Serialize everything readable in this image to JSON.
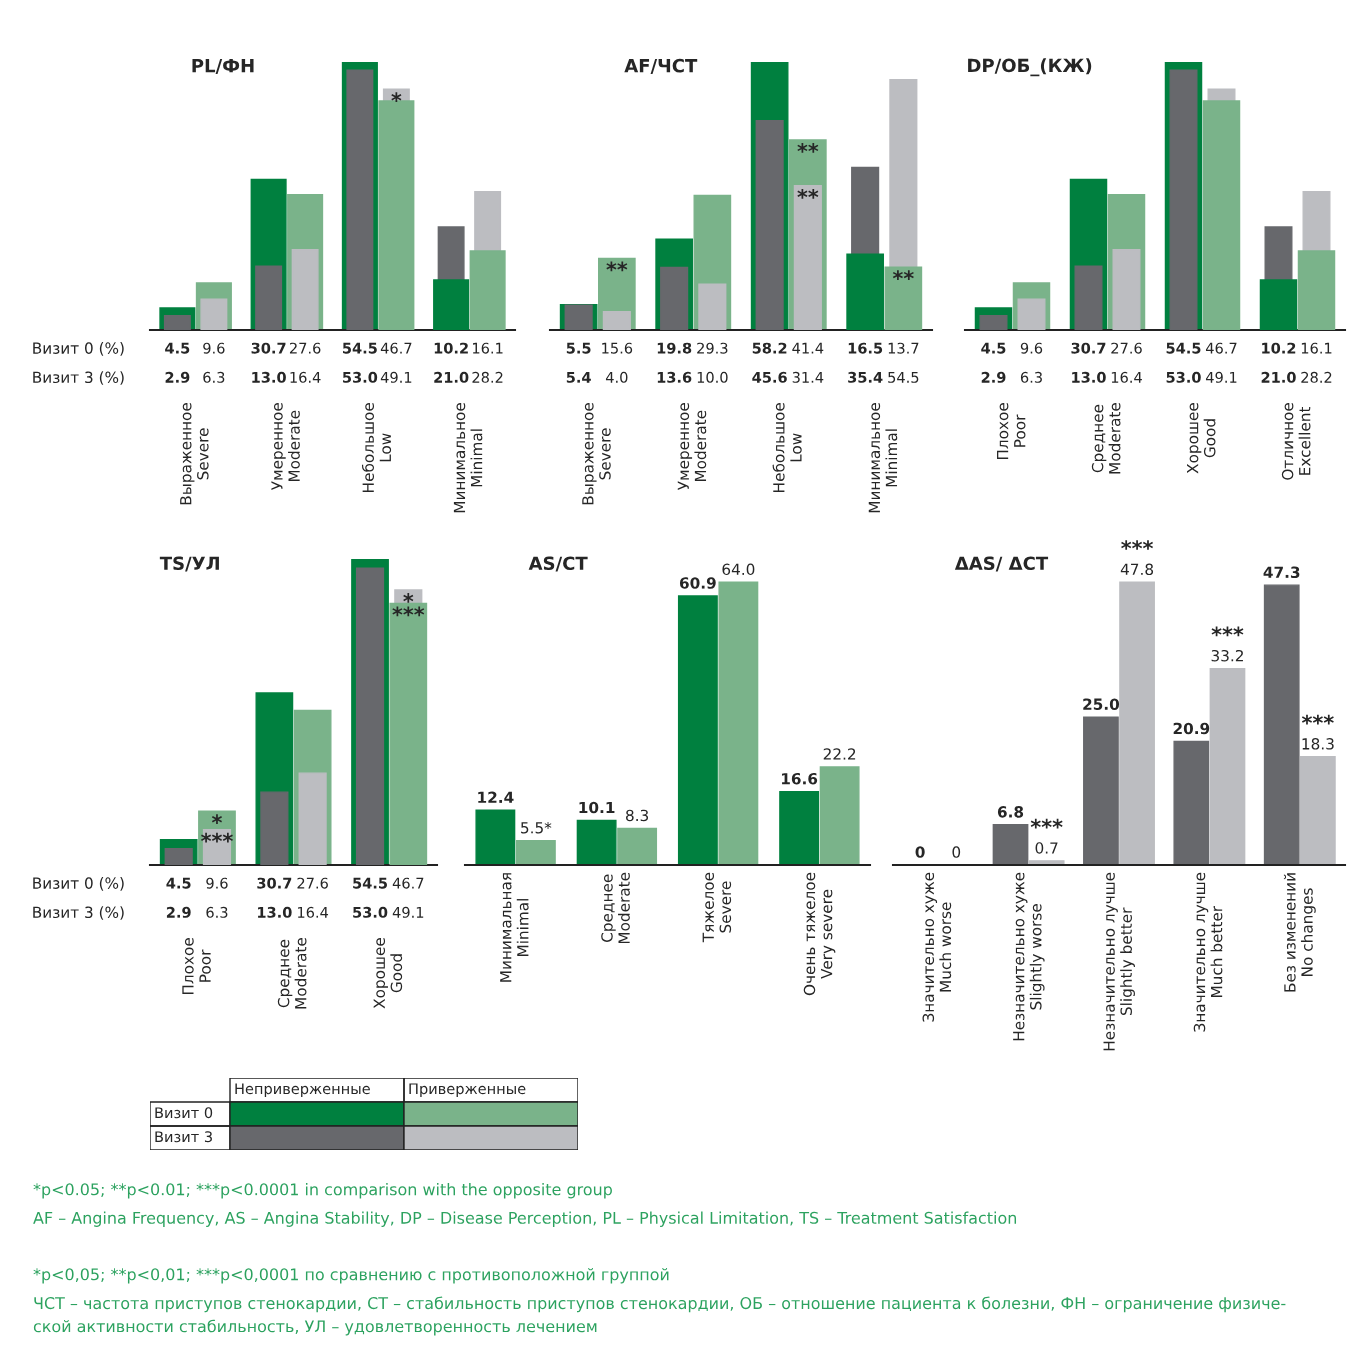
{
  "chart_data": [
    {
      "type": "bar",
      "title": "PL/ФН",
      "categories": [
        "Выраженное\nSevere",
        "Умеренное\nModerate",
        "Небольшое\nLow",
        "Минимальное\nMinimal"
      ],
      "series": [
        {
          "color": "#00803f",
          "values": [
            4.5,
            30.7,
            54.5,
            10.2
          ],
          "value_labels": [
            "4.5",
            "30.7",
            "54.5",
            "10.2"
          ]
        },
        {
          "color": "#7ab38a",
          "values": [
            9.6,
            27.6,
            46.7,
            16.1
          ],
          "value_labels": [
            "9.6",
            "27.6",
            "46.7",
            "16.1"
          ]
        },
        {
          "color": "#67686c",
          "values": [
            2.9,
            13.0,
            53.0,
            21.0
          ],
          "value_labels": [
            "2.9",
            "13.0",
            "53.0",
            "21.0"
          ]
        },
        {
          "color": "#bcbdc1",
          "values": [
            6.3,
            16.4,
            49.1,
            28.2
          ],
          "value_labels": [
            "6.3",
            "16.4",
            "49.1",
            "28.2"
          ]
        }
      ],
      "annotations": [
        "Визит 0 (%)",
        "Визит 3 (%)",
        {
          "text": "*",
          "x": "Небольшое\nLow",
          "y": 49.1
        }
      ]
    },
    {
      "type": "bar",
      "title": "AF/ЧСТ",
      "categories": [
        "Выраженное\nSevere",
        "Умеренное\nModerate",
        "Небольшое\nLow",
        "Минимальное\nMinimal"
      ],
      "series": [
        {
          "color": "#00803f",
          "values": [
            5.5,
            19.8,
            58.2,
            16.5
          ],
          "value_labels": [
            "5.5",
            "19.8",
            "58.2",
            "16.5"
          ]
        },
        {
          "color": "#7ab38a",
          "values": [
            15.6,
            29.3,
            41.4,
            13.7
          ],
          "value_labels": [
            "15.6",
            "29.3",
            "41.4",
            "13.7"
          ]
        },
        {
          "color": "#67686c",
          "values": [
            5.4,
            13.6,
            45.6,
            35.4
          ],
          "value_labels": [
            "5.4",
            "13.6",
            "45.6",
            "35.4"
          ]
        },
        {
          "color": "#bcbdc1",
          "values": [
            4.0,
            10.0,
            31.4,
            54.5
          ],
          "value_labels": [
            "4.0",
            "10.0",
            "31.4",
            "54.5"
          ]
        }
      ],
      "annotations": [
        {
          "text": "**",
          "x": "Выраженное\nSevere",
          "y": 15.6
        },
        {
          "text": "**",
          "x": "Небольшое\nLow",
          "y": 41.4
        },
        {
          "text": "**",
          "x": "Небольшое\nLow",
          "y": 31.4
        },
        {
          "text": "**",
          "x": "Минимальное\nMinimal",
          "y": 13.7
        }
      ]
    },
    {
      "type": "bar",
      "title": "DP/ОБ_(КЖ)",
      "categories": [
        "Плохое\nPoor",
        "Среднее\nModerate",
        "Хорошее\nGood",
        "Отличное\nExcellent"
      ],
      "series": [
        {
          "color": "#00803f",
          "values": [
            4.5,
            30.7,
            54.5,
            10.2
          ],
          "value_labels": [
            "4.5",
            "30.7",
            "54.5",
            "10.2"
          ]
        },
        {
          "color": "#7ab38a",
          "values": [
            9.6,
            27.6,
            46.7,
            16.1
          ],
          "value_labels": [
            "9.6",
            "27.6",
            "46.7",
            "16.1"
          ]
        },
        {
          "color": "#67686c",
          "values": [
            2.9,
            13.0,
            53.0,
            21.0
          ],
          "value_labels": [
            "2.9",
            "13.0",
            "53.0",
            "21.0"
          ]
        },
        {
          "color": "#bcbdc1",
          "values": [
            6.3,
            16.4,
            49.1,
            28.2
          ],
          "value_labels": [
            "6.3",
            "16.4",
            "49.1",
            "28.2"
          ]
        }
      ]
    },
    {
      "type": "bar",
      "title": "TS/УЛ",
      "categories": [
        "Плохое\nPoor",
        "Среднее\nModerate",
        "Хорошее\nGood"
      ],
      "series": [
        {
          "color": "#00803f",
          "values": [
            4.5,
            30.7,
            54.5
          ],
          "value_labels": [
            "4.5",
            "30.7",
            "54.5"
          ]
        },
        {
          "color": "#7ab38a",
          "values": [
            9.6,
            27.6,
            46.7
          ],
          "value_labels": [
            "9.6",
            "27.6",
            "46.7"
          ]
        },
        {
          "color": "#67686c",
          "values": [
            2.9,
            13.0,
            53.0
          ],
          "value_labels": [
            "2.9",
            "13.0",
            "53.0"
          ]
        },
        {
          "color": "#bcbdc1",
          "values": [
            6.3,
            16.4,
            49.1
          ],
          "value_labels": [
            "6.3",
            "16.4",
            "49.1"
          ]
        }
      ],
      "annotations": [
        "Визит 0 (%)",
        "Визит 3 (%)",
        {
          "text": "*",
          "x": "Плохое\nPoor",
          "y": 9.6
        },
        {
          "text": "***",
          "x": "Плохое\nPoor",
          "y": 6.3
        },
        {
          "text": "*",
          "x": "Хорошее\nGood",
          "y": 49.1
        },
        {
          "text": "***",
          "x": "Хорошее\nGood",
          "y": 46.7
        }
      ]
    },
    {
      "type": "bar",
      "title": "AS/СТ",
      "categories": [
        "Минимальная\nMinimal",
        "Среднее\nModerate",
        "Тяжелое\nSevere",
        "Очень тяжелое\nVery severe"
      ],
      "series": [
        {
          "color": "#00803f",
          "values": [
            12.4,
            10.1,
            60.9,
            16.6
          ],
          "value_labels": [
            "12.4",
            "10.1",
            "60.9",
            "16.6"
          ]
        },
        {
          "color": "#7ab38a",
          "values": [
            5.5,
            8.3,
            64.0,
            22.2
          ],
          "value_labels": [
            "5.5*",
            "8.3",
            "64.0",
            "22.2"
          ]
        }
      ]
    },
    {
      "type": "bar",
      "title": "ΔAS/ ΔСТ",
      "categories": [
        "Значительно хуже\nMuch worse",
        "Незначительно хуже\nSlightly worse",
        "Незначительно лучше\nSlightly better",
        "Значительно лучше\nMuch better",
        "Без изменений\nNo changes"
      ],
      "series": [
        {
          "color": "#67686c",
          "values": [
            0,
            6.8,
            25.0,
            20.9,
            47.3
          ],
          "value_labels": [
            "0",
            "6.8",
            "25.0",
            "20.9",
            "47.3"
          ]
        },
        {
          "color": "#bcbdc1",
          "values": [
            0,
            0.7,
            47.8,
            33.2,
            18.3
          ],
          "value_labels": [
            "0",
            "0.7",
            "47.8",
            "33.2",
            "18.3"
          ]
        }
      ],
      "annotations": [
        {
          "text": "***",
          "x": "Незначительно хуже\nSlightly worse",
          "y": 0.7
        },
        {
          "text": "***",
          "x": "Незначительно лучше\nSlightly better",
          "y": 47.8
        },
        {
          "text": "***",
          "x": "Значительно лучше\nMuch better",
          "y": 33.2
        },
        {
          "text": "***",
          "x": "Без изменений\nNo changes",
          "y": 18.3
        }
      ]
    },
    {
      "type": "other",
      "categories": [
        "Неприверженные",
        "Приверженные"
      ],
      "y_categories": [
        "Визит 0",
        "Визит 3"
      ],
      "colors": [
        "#00803f",
        "#7ab38a",
        "#67686c",
        "#bcbdc1"
      ],
      "annotations": [
        "*p<0.05; **p<0.01; ***p<0.0001 in comparison with the opposite group",
        "AF – Angina Frequency, AS – Angina Stability, DP – Disease Perception, PL – Physical Limitation, TS – Treatment Satisfaction",
        "*p<0,05; **p<0,01; ***p<0,0001 по сравнению с противоположной группой",
        "ЧСТ – частота приступов стенокардии, СТ – стабильность приступов стенокардии, ОБ – отношение пациента к болезни, ФН – ограничение физиче-\nской активности стабильность, УЛ – удовлетворенность лечением"
      ]
    }
  ]
}
